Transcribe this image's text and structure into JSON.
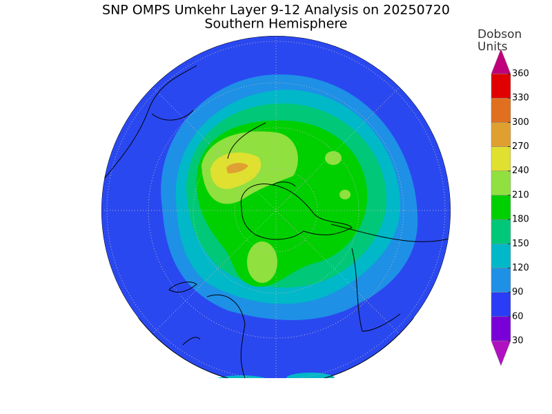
{
  "title": "SNP OMPS Umkehr Layer 9-12 Analysis on 20250720",
  "subtitle": "Southern Hemisphere",
  "colorbar": {
    "label_lines": [
      "Dobson",
      "Units"
    ],
    "ticks": [
      30,
      60,
      90,
      120,
      150,
      180,
      210,
      240,
      270,
      300,
      330,
      360
    ],
    "colors": [
      "#b010c0",
      "#7a00d8",
      "#2a3cf5",
      "#1e90e6",
      "#00b8c8",
      "#00c878",
      "#00d000",
      "#90e040",
      "#e0e030",
      "#e0a030",
      "#e07020",
      "#e00000",
      "#c0007a"
    ]
  }
}
